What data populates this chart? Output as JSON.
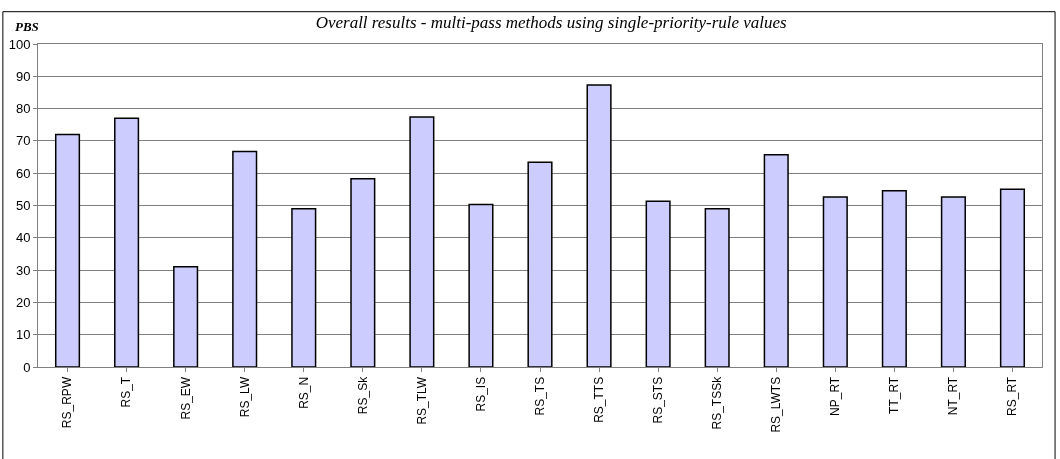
{
  "chart_data": {
    "type": "bar",
    "title": "Overall results - multi-pass methods using single-priority-rule values",
    "ylabel": "PBS",
    "categories": [
      "RS_RPW",
      "RS_T",
      "RS_EW",
      "RS_LW",
      "RS_N",
      "RS_Sk",
      "RS_TLW",
      "RS_IS",
      "RS_TS",
      "RS_TTS",
      "RS_STS",
      "RS_TSSk",
      "RS_LWTS",
      "NP_RT",
      "TT_RT",
      "NT_RT",
      "RS_RT"
    ],
    "values": [
      72,
      77,
      31,
      66.7,
      49,
      58.3,
      77.4,
      50.3,
      63.4,
      87.3,
      51.3,
      49,
      65.7,
      52.6,
      54.6,
      52.6,
      55
    ],
    "color": "#ccccff",
    "ylim": [
      0,
      100
    ],
    "yticks": [
      0,
      10,
      20,
      30,
      40,
      50,
      60,
      70,
      80,
      90,
      100
    ],
    "grid": "y",
    "legend": false
  }
}
